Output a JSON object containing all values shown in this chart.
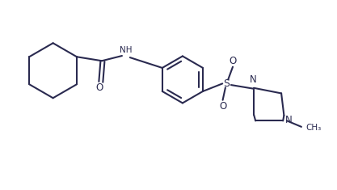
{
  "background_color": "#ffffff",
  "line_color": "#2a2a50",
  "line_width": 1.5,
  "fig_width": 4.17,
  "fig_height": 2.35,
  "dpi": 100,
  "xlim": [
    0,
    10
  ],
  "ylim": [
    0,
    5.64
  ]
}
